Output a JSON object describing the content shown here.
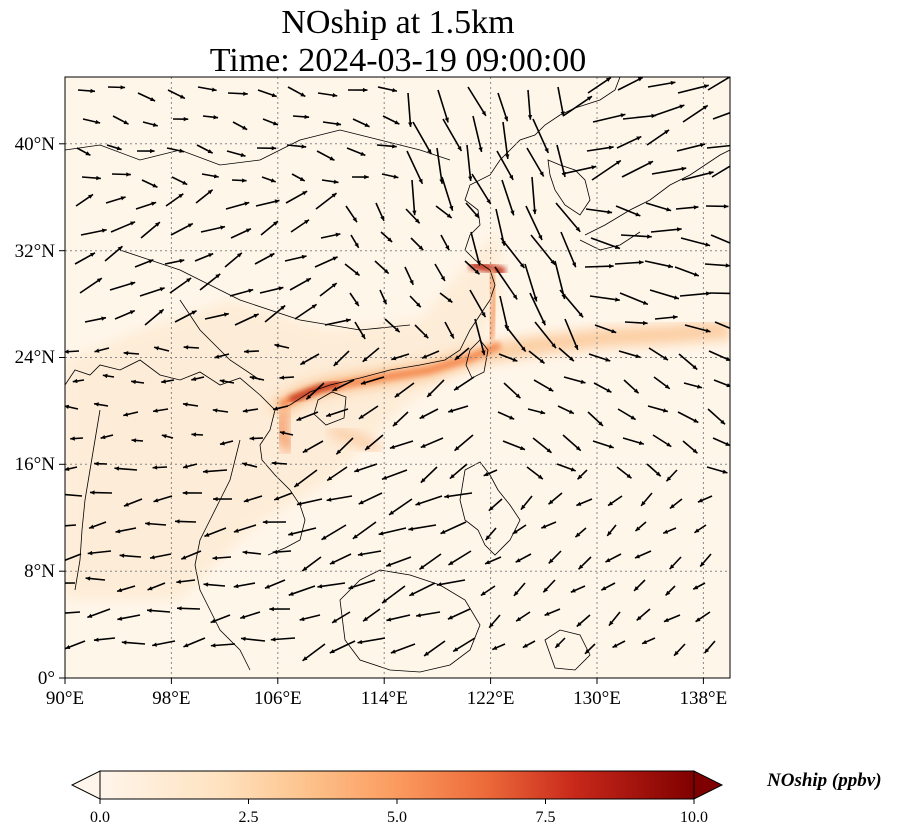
{
  "title_line1": "NOship at 1.5km",
  "title_line2": "Time: 2024-03-19 09:00:00",
  "map": {
    "lon_range": [
      90,
      140
    ],
    "lat_range": [
      0,
      45
    ],
    "lon_ticks": [
      "90°E",
      "98°E",
      "106°E",
      "114°E",
      "122°E",
      "130°E",
      "138°E"
    ],
    "lat_ticks": [
      "0°",
      "8°N",
      "16°N",
      "24°N",
      "32°N",
      "40°N"
    ],
    "background_color": "#fff6ea",
    "shipping_lane_color": "#c0301a"
  },
  "colorbar": {
    "label": "NOship (ppbv)",
    "ticks": [
      "0.0",
      "2.5",
      "5.0",
      "7.5",
      "10.0"
    ],
    "colors": [
      "#fff5eb",
      "#fdd9a8",
      "#fdb87a",
      "#f4814a",
      "#d94723",
      "#a81012",
      "#7f0000"
    ]
  },
  "icons": {
    "wind-vector": "arrow",
    "colorbar-extend": "triangle"
  }
}
